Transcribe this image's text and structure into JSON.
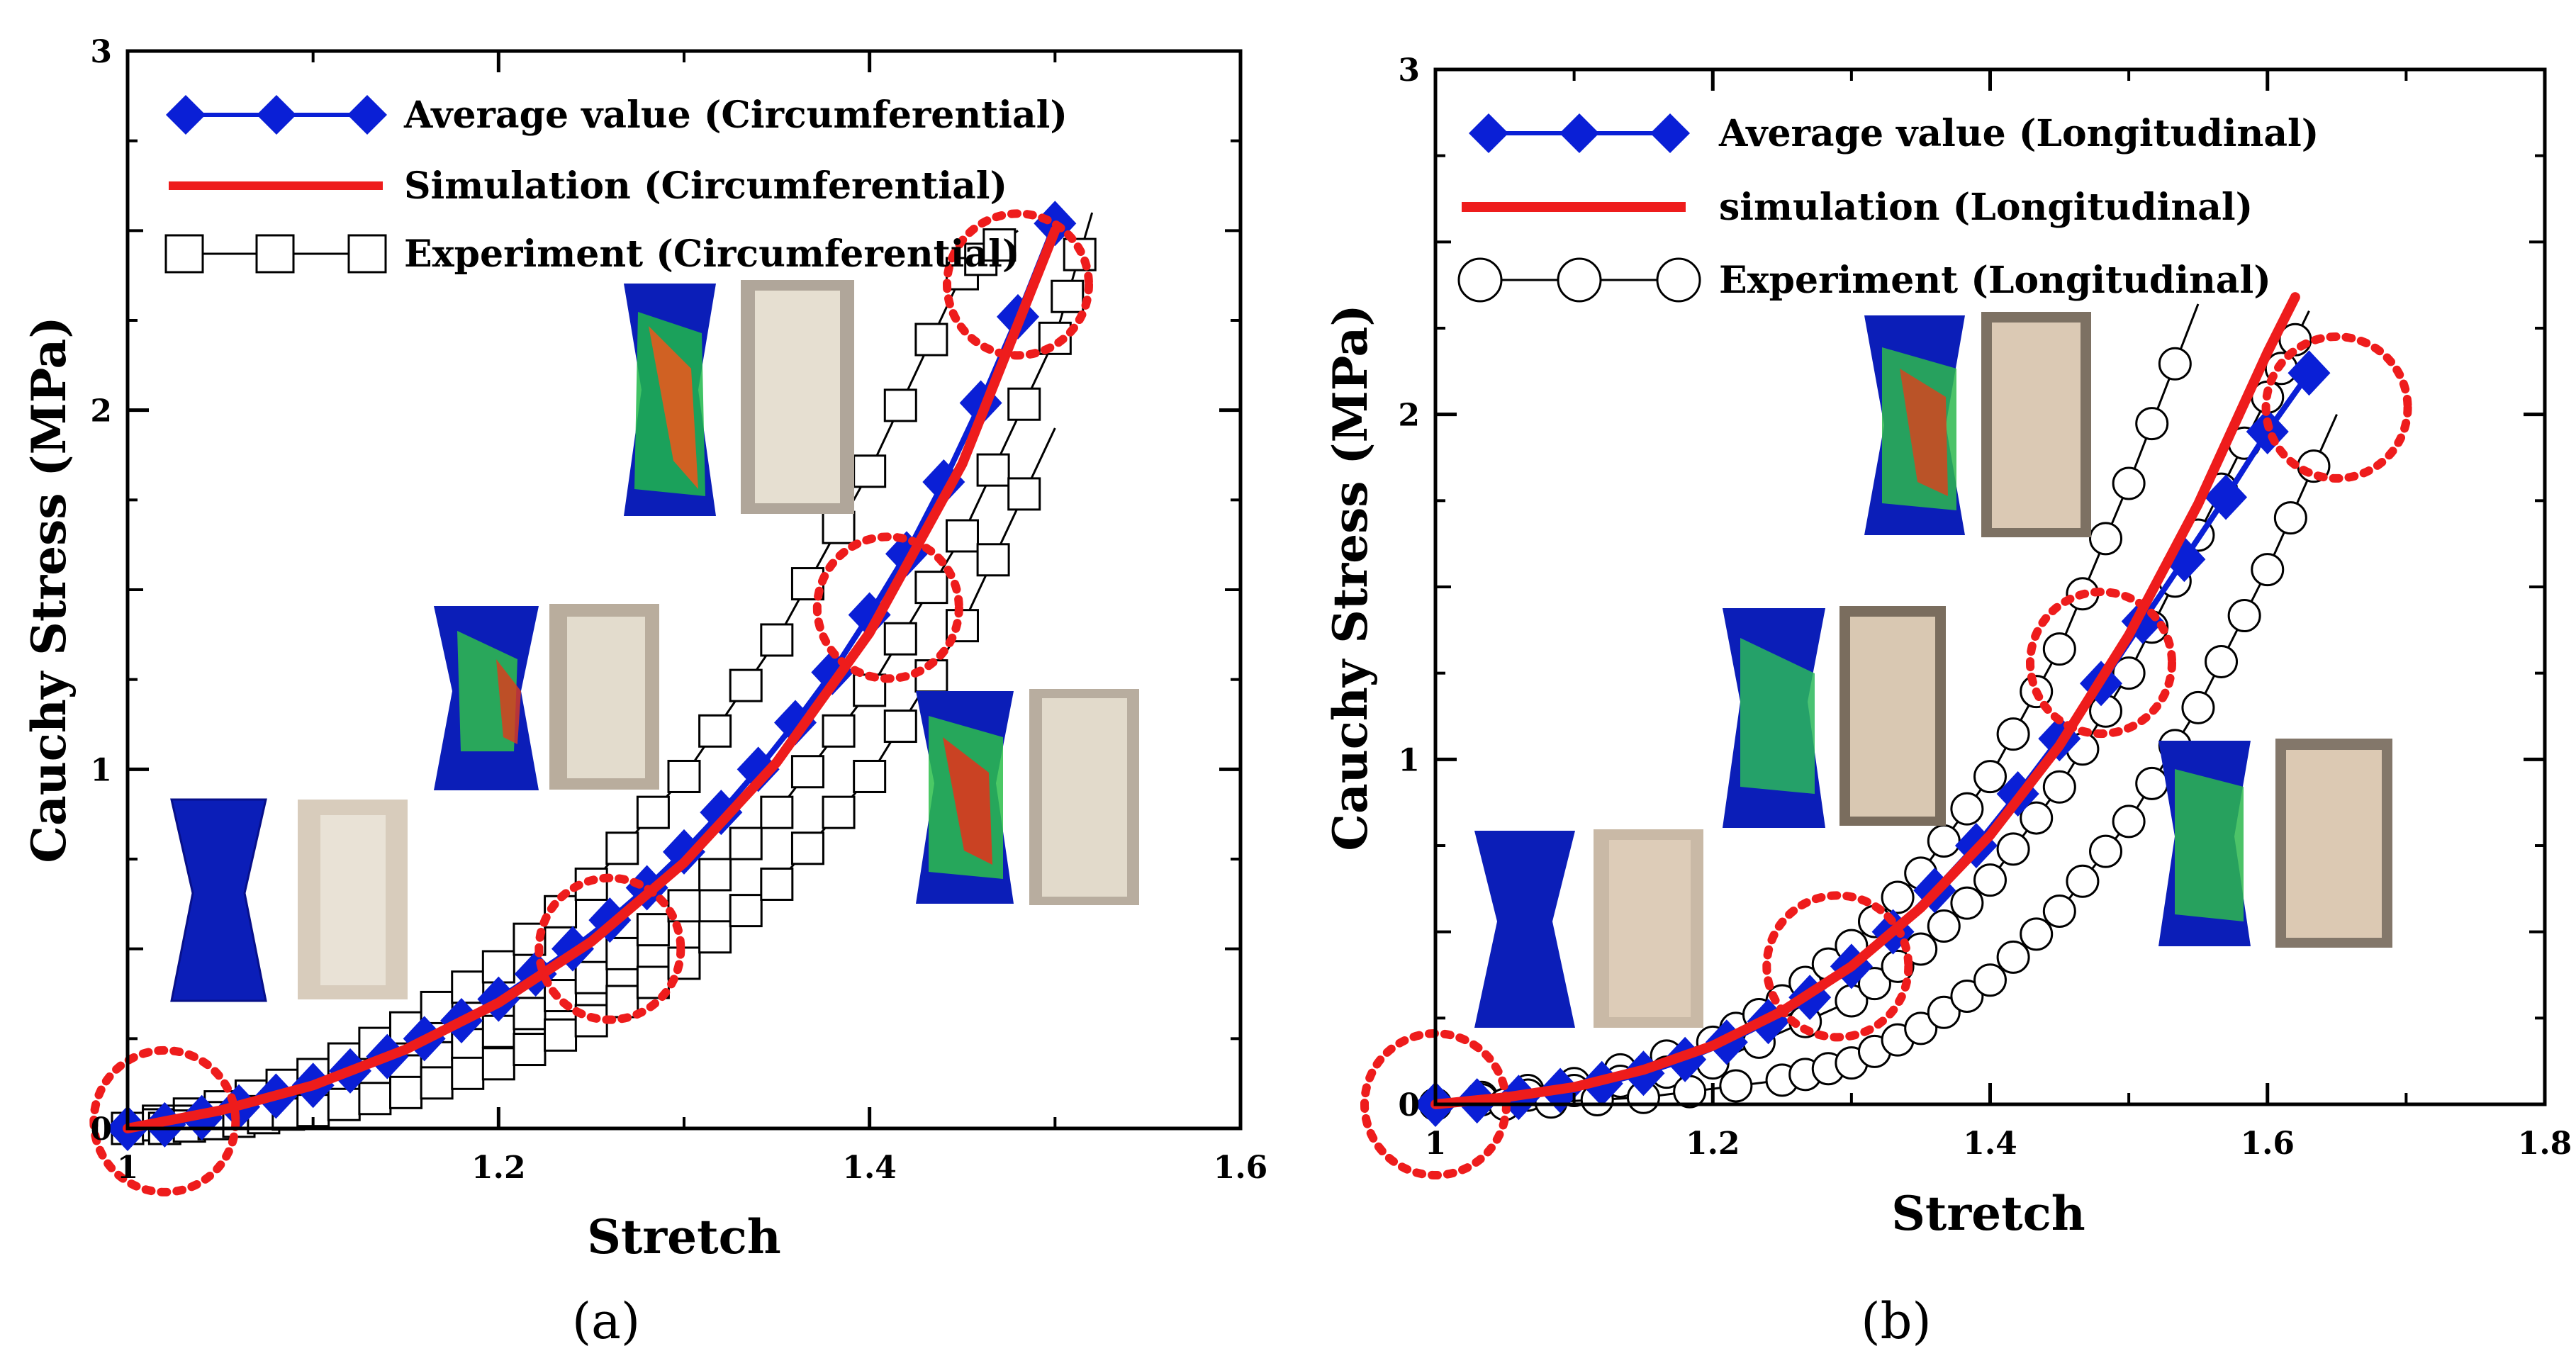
{
  "chart_data": [
    {
      "type": "line",
      "panel_label": "(a)",
      "xlabel": "Stretch",
      "ylabel": "Cauchy Stress (MPa)",
      "xlim": [
        1.0,
        1.6
      ],
      "ylim": [
        0,
        3
      ],
      "x_ticks": [
        "1",
        "1.2",
        "1.4",
        "1.6"
      ],
      "y_ticks": [
        "0",
        "1",
        "2",
        "3"
      ],
      "legend_position": "top-left",
      "series": [
        {
          "name": "Average value (Circumferential)",
          "marker": "diamond",
          "color": "#0a1fd6",
          "x": [
            1.0,
            1.02,
            1.04,
            1.06,
            1.08,
            1.1,
            1.12,
            1.14,
            1.16,
            1.18,
            1.2,
            1.22,
            1.24,
            1.26,
            1.28,
            1.3,
            1.32,
            1.34,
            1.36,
            1.38,
            1.4,
            1.42,
            1.44,
            1.46,
            1.48,
            1.5
          ],
          "y": [
            0.0,
            0.01,
            0.03,
            0.06,
            0.09,
            0.12,
            0.16,
            0.2,
            0.25,
            0.3,
            0.36,
            0.43,
            0.5,
            0.58,
            0.67,
            0.77,
            0.88,
            1.0,
            1.13,
            1.27,
            1.43,
            1.6,
            1.8,
            2.02,
            2.26,
            2.52
          ]
        },
        {
          "name": "Simulation (Circumferential)",
          "marker": "none",
          "color": "#ee1c1c",
          "x": [
            1.0,
            1.05,
            1.1,
            1.15,
            1.2,
            1.25,
            1.3,
            1.35,
            1.4,
            1.45,
            1.5
          ],
          "y": [
            0.0,
            0.05,
            0.12,
            0.22,
            0.35,
            0.52,
            0.74,
            1.02,
            1.38,
            1.85,
            2.5
          ]
        },
        {
          "name": "Experiment (Circumferential)",
          "marker": "square-open",
          "color": "#000000",
          "curves": [
            {
              "x": [
                1.0,
                1.05,
                1.1,
                1.15,
                1.2,
                1.25,
                1.3,
                1.35,
                1.4,
                1.45,
                1.48
              ],
              "y": [
                0.0,
                0.06,
                0.15,
                0.28,
                0.45,
                0.68,
                0.98,
                1.36,
                1.83,
                2.38,
                2.5
              ]
            },
            {
              "x": [
                1.0,
                1.05,
                1.1,
                1.15,
                1.2,
                1.25,
                1.3,
                1.35,
                1.4,
                1.45,
                1.5,
                1.52
              ],
              "y": [
                0.0,
                0.03,
                0.08,
                0.16,
                0.27,
                0.42,
                0.62,
                0.88,
                1.22,
                1.65,
                2.2,
                2.55
              ]
            },
            {
              "x": [
                1.02,
                1.06,
                1.1,
                1.15,
                1.2,
                1.25,
                1.3,
                1.35,
                1.4,
                1.45,
                1.5
              ],
              "y": [
                0.0,
                0.02,
                0.05,
                0.1,
                0.18,
                0.3,
                0.46,
                0.68,
                0.98,
                1.4,
                1.95
              ]
            }
          ]
        }
      ],
      "highlight_circles": [
        {
          "x": 1.02,
          "y": 0.02
        },
        {
          "x": 1.26,
          "y": 0.5
        },
        {
          "x": 1.41,
          "y": 1.45
        },
        {
          "x": 1.48,
          "y": 2.35
        }
      ]
    },
    {
      "type": "line",
      "panel_label": "(b)",
      "xlabel": "Stretch",
      "ylabel": "Cauchy Stress (MPa)",
      "xlim": [
        1.0,
        1.8
      ],
      "ylim": [
        0,
        3
      ],
      "x_ticks": [
        "1",
        "1.2",
        "1.4",
        "1.6",
        "1.8"
      ],
      "y_ticks": [
        "0",
        "1",
        "2",
        "3"
      ],
      "legend_position": "top-left",
      "series": [
        {
          "name": "Average value (Longitudinal)",
          "marker": "diamond",
          "color": "#0a1fd6",
          "x": [
            1.0,
            1.03,
            1.06,
            1.09,
            1.12,
            1.15,
            1.18,
            1.21,
            1.24,
            1.27,
            1.3,
            1.33,
            1.36,
            1.39,
            1.42,
            1.45,
            1.48,
            1.51,
            1.54,
            1.57,
            1.6,
            1.63
          ],
          "y": [
            0.0,
            0.01,
            0.02,
            0.04,
            0.06,
            0.09,
            0.13,
            0.18,
            0.24,
            0.31,
            0.4,
            0.5,
            0.62,
            0.75,
            0.9,
            1.06,
            1.22,
            1.4,
            1.58,
            1.76,
            1.95,
            2.12
          ]
        },
        {
          "name": "simulation (Longitudinal)",
          "marker": "none",
          "color": "#ee1c1c",
          "x": [
            1.0,
            1.05,
            1.1,
            1.15,
            1.2,
            1.25,
            1.3,
            1.35,
            1.4,
            1.45,
            1.5,
            1.55,
            1.6,
            1.62
          ],
          "y": [
            0.0,
            0.02,
            0.05,
            0.1,
            0.17,
            0.27,
            0.4,
            0.57,
            0.78,
            1.04,
            1.36,
            1.74,
            2.18,
            2.34
          ]
        },
        {
          "name": "Experiment (Longitudinal)",
          "marker": "circle-open",
          "color": "#000000",
          "curves": [
            {
              "x": [
                1.0,
                1.1,
                1.2,
                1.25,
                1.3,
                1.35,
                1.4,
                1.45,
                1.5,
                1.55
              ],
              "y": [
                0.0,
                0.06,
                0.18,
                0.3,
                0.46,
                0.67,
                0.95,
                1.32,
                1.8,
                2.32
              ]
            },
            {
              "x": [
                1.0,
                1.1,
                1.2,
                1.3,
                1.35,
                1.4,
                1.45,
                1.5,
                1.55,
                1.6,
                1.63
              ],
              "y": [
                0.0,
                0.04,
                0.12,
                0.3,
                0.45,
                0.65,
                0.92,
                1.25,
                1.65,
                2.05,
                2.3
              ]
            },
            {
              "x": [
                1.05,
                1.15,
                1.25,
                1.3,
                1.35,
                1.4,
                1.45,
                1.5,
                1.55,
                1.6,
                1.65
              ],
              "y": [
                0.0,
                0.02,
                0.07,
                0.12,
                0.22,
                0.36,
                0.56,
                0.82,
                1.15,
                1.55,
                2.0
              ]
            }
          ]
        }
      ],
      "highlight_circles": [
        {
          "x": 1.0,
          "y": 0.0
        },
        {
          "x": 1.29,
          "y": 0.4
        },
        {
          "x": 1.48,
          "y": 1.28
        },
        {
          "x": 1.65,
          "y": 2.02
        }
      ]
    }
  ]
}
